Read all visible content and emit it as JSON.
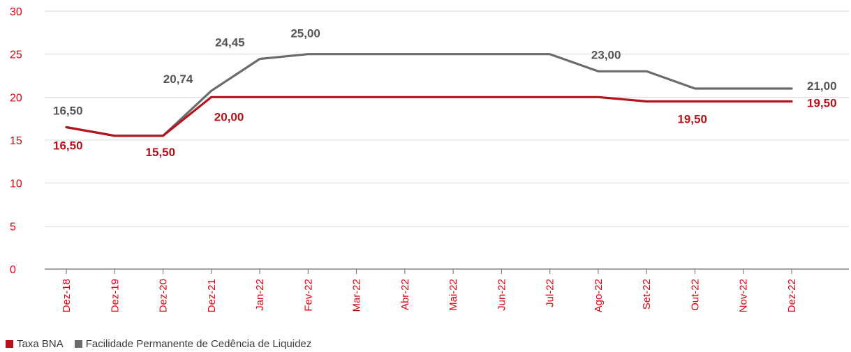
{
  "chart_data": {
    "type": "line",
    "categories": [
      "Dez-18",
      "Dez-19",
      "Dez-20",
      "Dez-21",
      "Jan-22",
      "Fev-22",
      "Mar-22",
      "Abr-22",
      "Mai-22",
      "Jun-22",
      "Jul-22",
      "Ago-22",
      "Set-22",
      "Out-22",
      "Nov-22",
      "Dez-22"
    ],
    "ylim": [
      0,
      30
    ],
    "yticks": [
      "0",
      "5",
      "10",
      "15",
      "20",
      "25",
      "30"
    ],
    "series": [
      {
        "name": "Taxa BNA",
        "color": "#b5121b",
        "values": [
          16.5,
          15.5,
          15.5,
          20.0,
          20.0,
          20.0,
          20.0,
          20.0,
          20.0,
          20.0,
          20.0,
          20.0,
          19.5,
          19.5,
          19.5,
          19.5
        ],
        "data_labels": [
          {
            "index": 0,
            "text": "16,50"
          },
          {
            "index": 2,
            "text": "15,50"
          },
          {
            "index": 3,
            "text": "20,00"
          },
          {
            "index": 13,
            "text": "19,50"
          },
          {
            "index": 15,
            "text": "19,50"
          }
        ]
      },
      {
        "name": "Facilidade Permanente de Cedência de Liquidez",
        "color": "#6b6b6b",
        "values": [
          16.5,
          15.5,
          15.5,
          20.74,
          24.45,
          25.0,
          25.0,
          25.0,
          25.0,
          25.0,
          25.0,
          23.0,
          23.0,
          21.0,
          21.0,
          21.0
        ],
        "data_labels": [
          {
            "index": 0,
            "text": "16,50"
          },
          {
            "index": 3,
            "text": "20,74"
          },
          {
            "index": 4,
            "text": "24,45"
          },
          {
            "index": 5,
            "text": "25,00"
          },
          {
            "index": 11,
            "text": "23,00"
          },
          {
            "index": 15,
            "text": "21,00"
          }
        ]
      }
    ],
    "grid": true,
    "legend_position": "bottom-left",
    "axis_text_color": "#e3000f",
    "grid_color": "#d9d9d9"
  }
}
